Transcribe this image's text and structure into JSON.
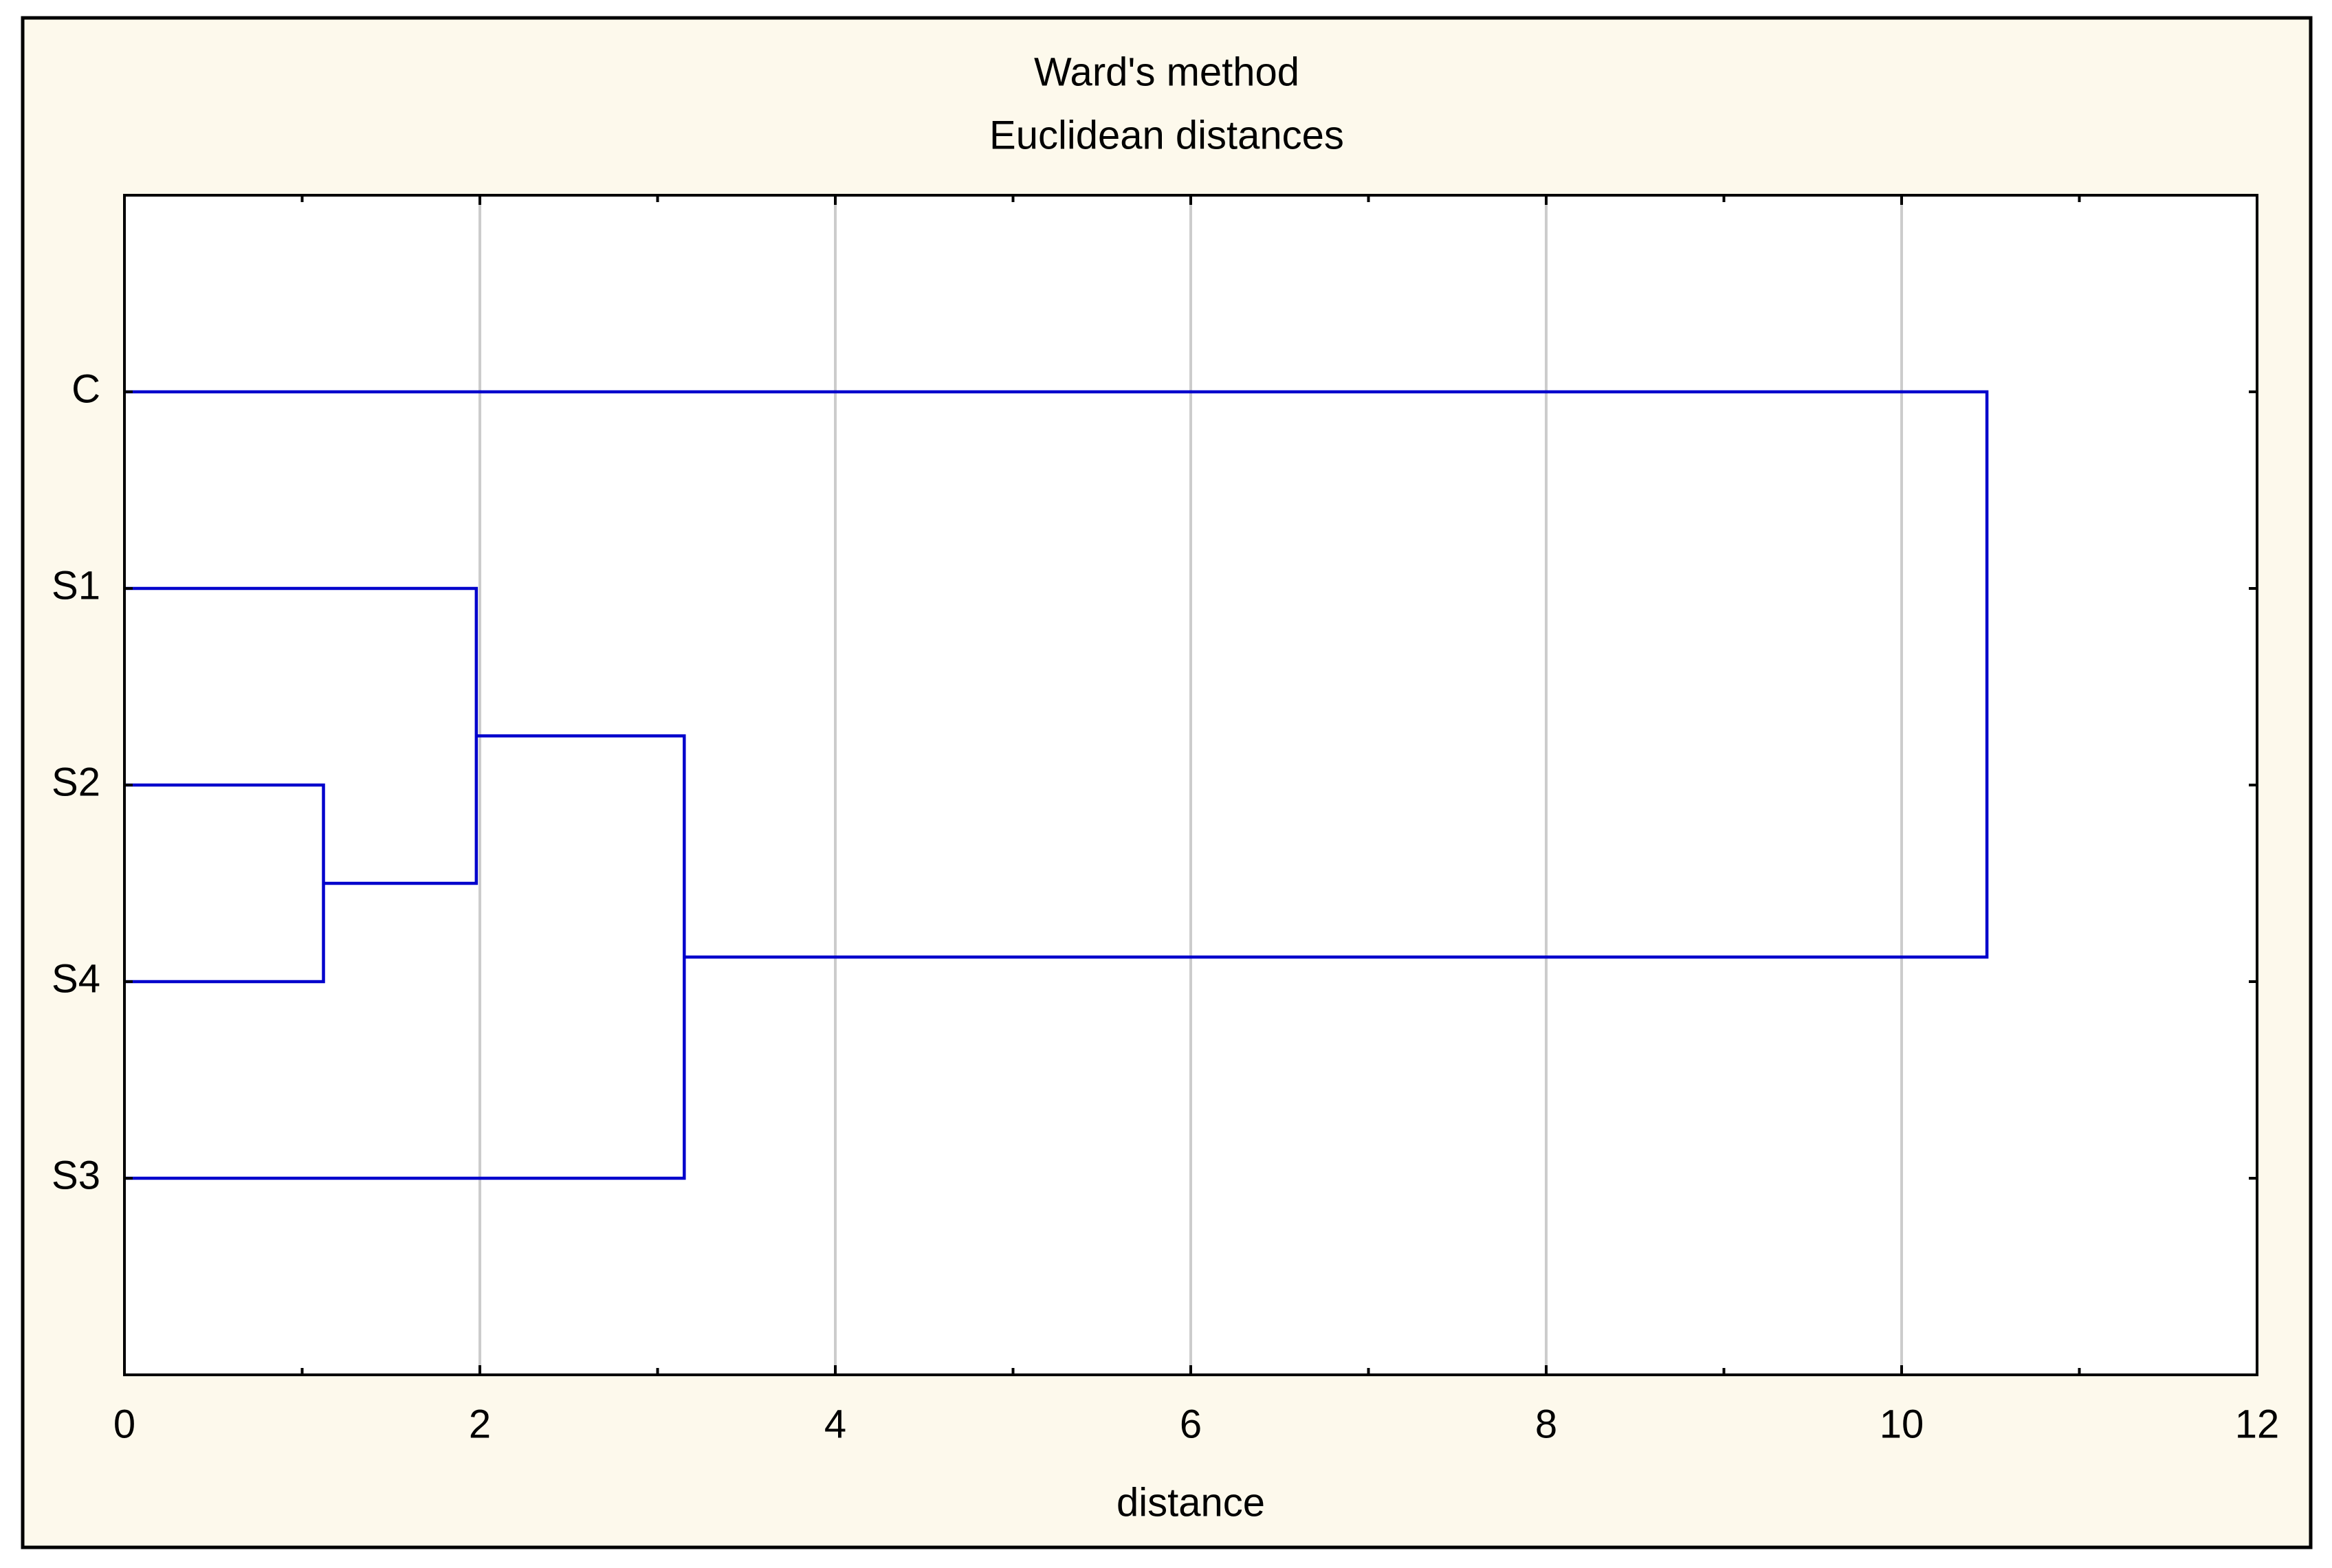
{
  "chart_data": {
    "type": "dendrogram",
    "title": "Ward's method",
    "subtitle": "Euclidean distances",
    "x_label": "distance",
    "leaves": [
      "C",
      "S1",
      "S2",
      "S4",
      "S3"
    ],
    "merges": [
      {
        "left": 2,
        "right": 3,
        "height": 1.12
      },
      {
        "left": 1,
        "right": 5,
        "height": 1.98
      },
      {
        "left": 6,
        "right": 4,
        "height": 3.15
      },
      {
        "left": 0,
        "right": 7,
        "height": 10.48
      }
    ],
    "color": "#0000cc",
    "xlim": [
      0,
      12
    ],
    "xticks": [
      0,
      2,
      4,
      6,
      8,
      10,
      12
    ],
    "grid": true
  }
}
